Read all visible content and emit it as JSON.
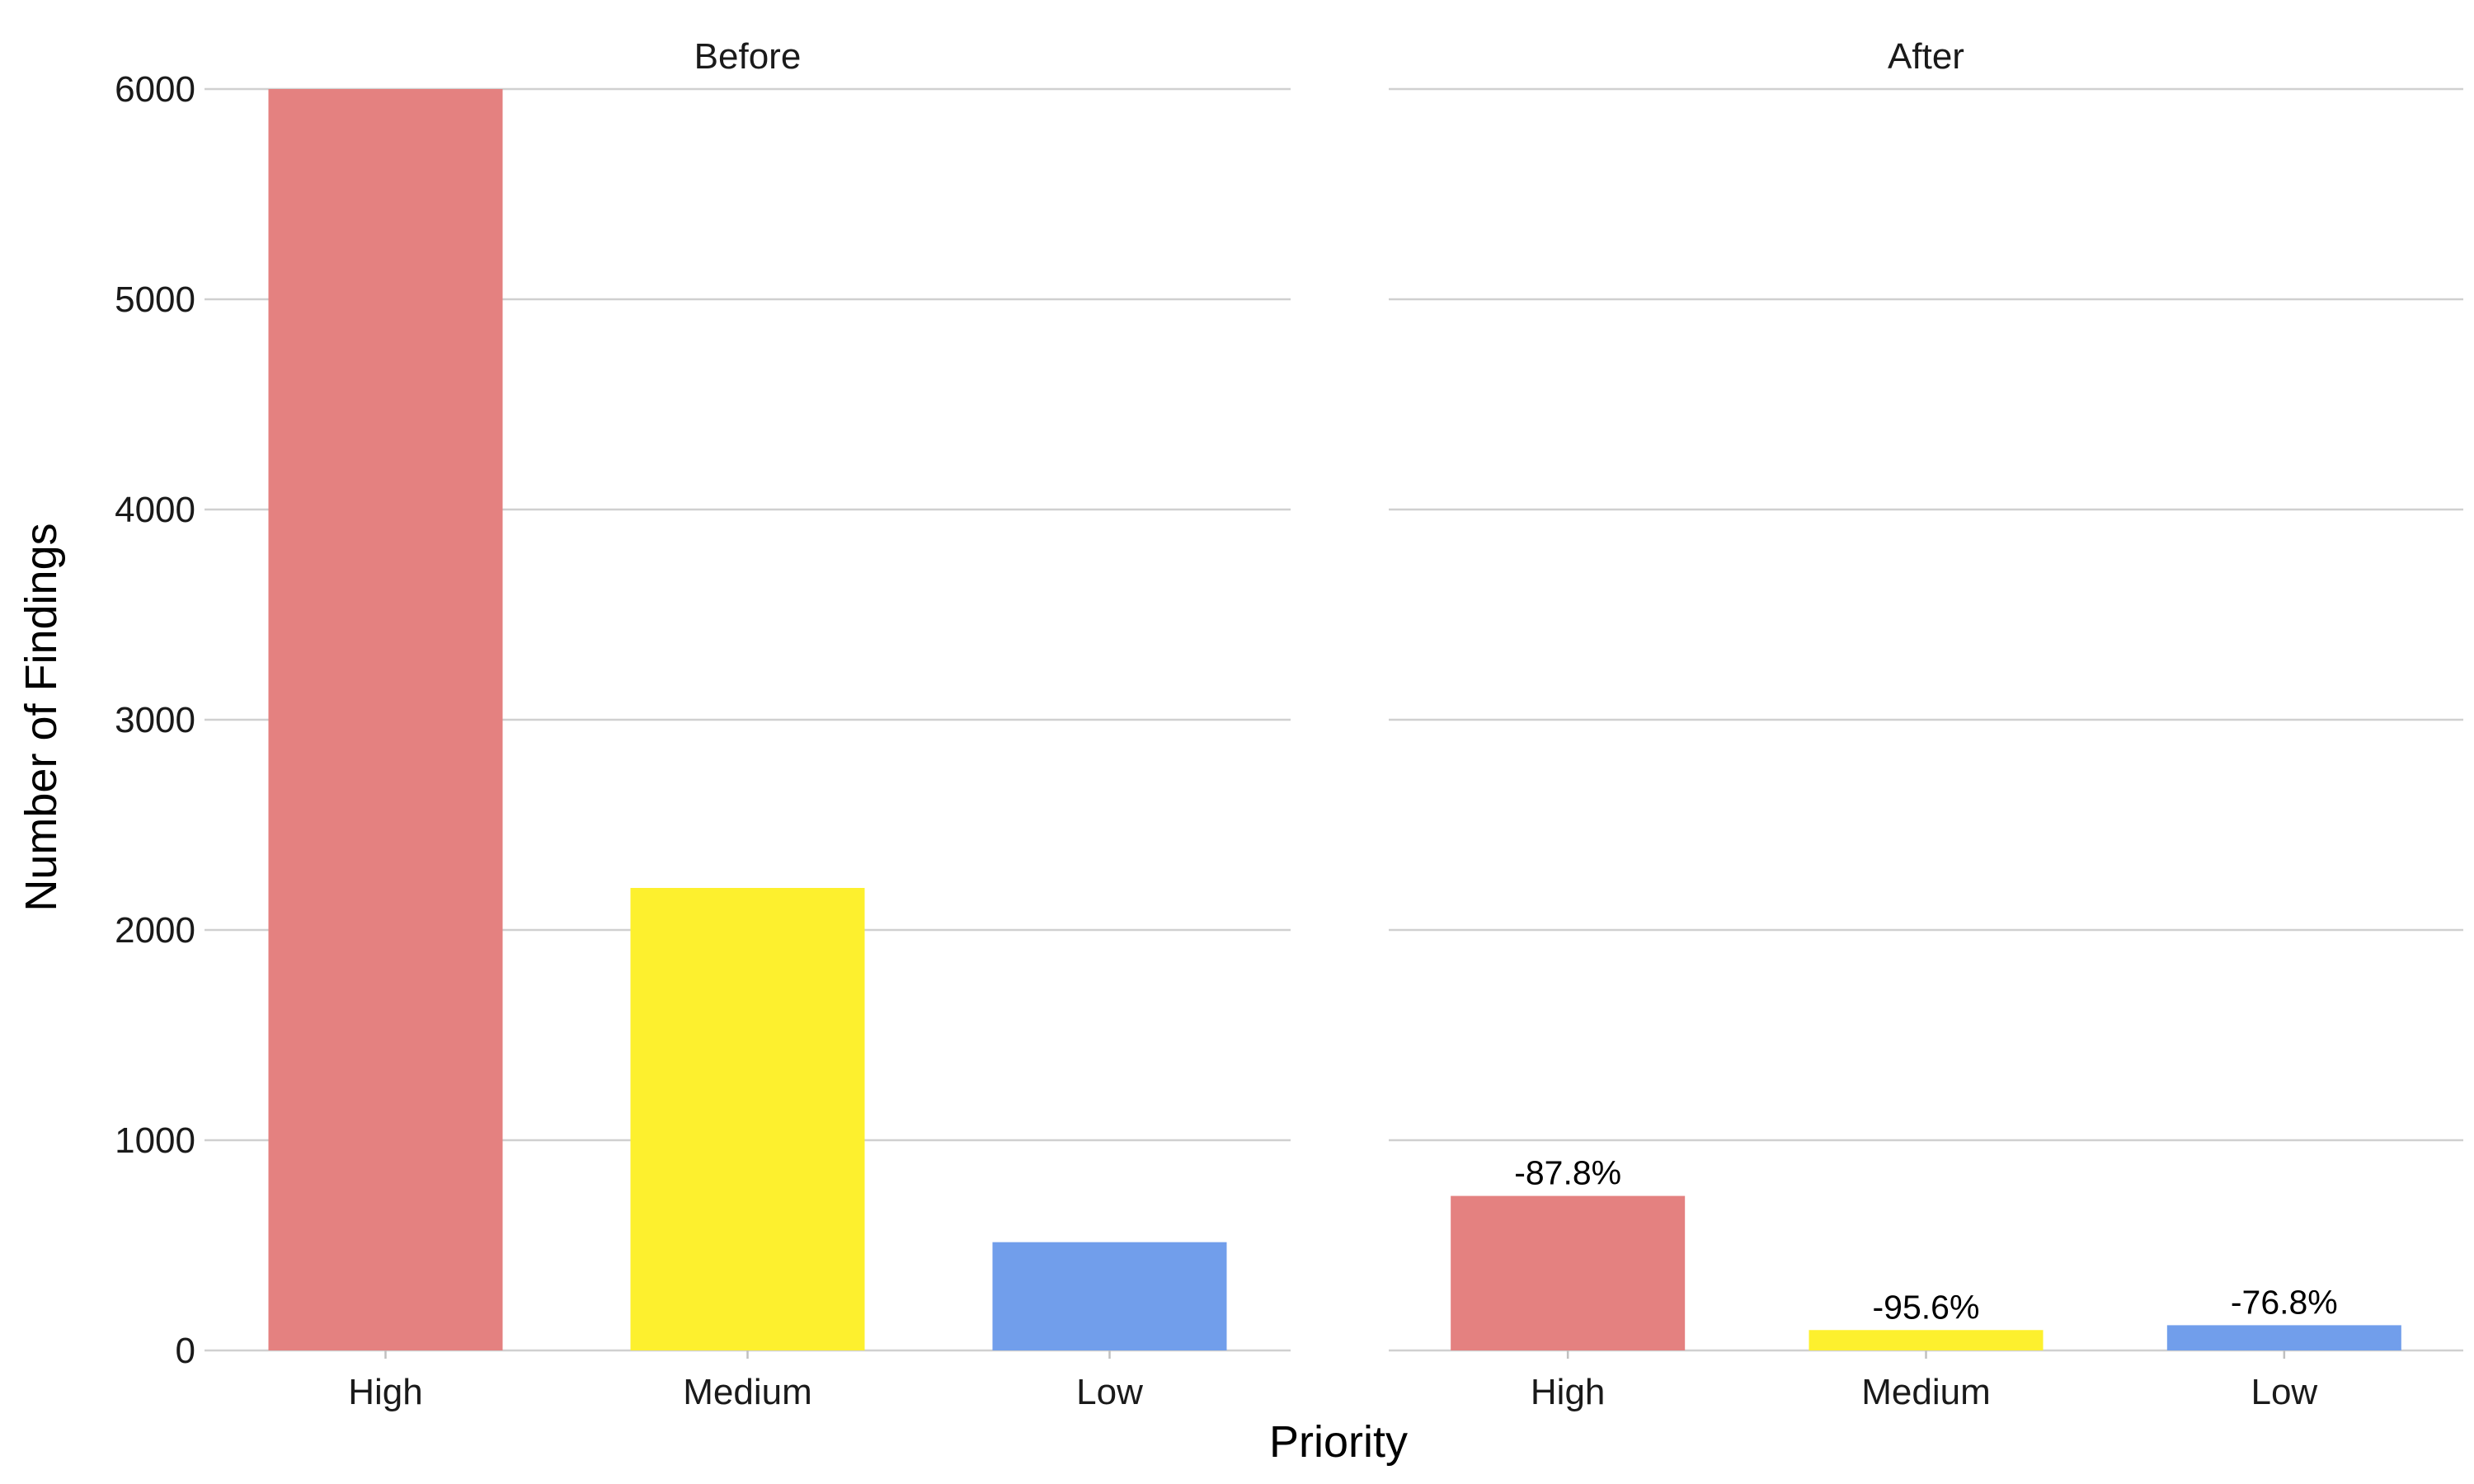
{
  "chart_data": {
    "type": "bar",
    "xlabel": "Priority",
    "ylabel": "Number of Findings",
    "ylim": [
      0,
      6000
    ],
    "yticks": [
      "0",
      "1000",
      "2000",
      "3000",
      "4000",
      "5000",
      "6000"
    ],
    "grid": "horizontal",
    "legend": "none",
    "categories": [
      "High",
      "Medium",
      "Low"
    ],
    "colors": {
      "High": "#E48180",
      "Medium": "#FDF02E",
      "Low": "#719EEB"
    },
    "panels": [
      {
        "name": "Before",
        "values": [
          6000,
          2200,
          515
        ],
        "labels": [
          "",
          "",
          ""
        ]
      },
      {
        "name": "After",
        "values": [
          735,
          97,
          120
        ],
        "labels": [
          "-87.8%",
          "-95.6%",
          "-76.8%"
        ]
      }
    ]
  }
}
